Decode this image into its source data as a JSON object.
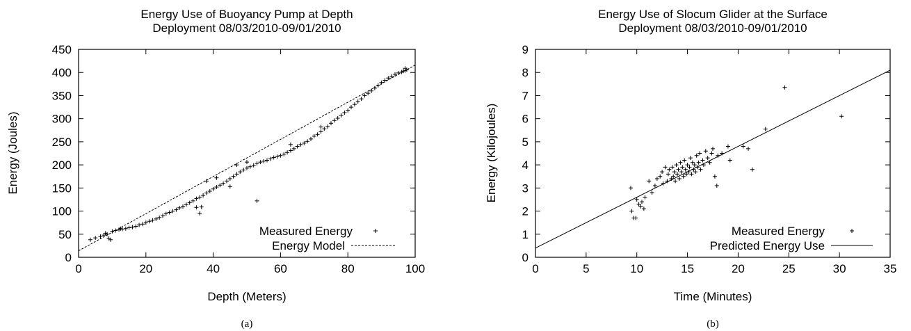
{
  "chart_data": [
    {
      "type": "scatter",
      "caption": "(a)",
      "title": "Energy Use of Buoyancy Pump at Depth",
      "subtitle": "Deployment 08/03/2010-09/01/2010",
      "xlabel": "Depth (Meters)",
      "ylabel": "Energy (Joules)",
      "xlim": [
        0,
        100
      ],
      "ylim": [
        0,
        450
      ],
      "xticks": [
        0,
        20,
        40,
        60,
        80,
        100
      ],
      "yticks": [
        0,
        50,
        100,
        150,
        200,
        250,
        300,
        350,
        400,
        450
      ],
      "grid": false,
      "legend_position": "bottom-right",
      "series": [
        {
          "name": "Measured Energy",
          "marker": "+",
          "points": [
            [
              3.5,
              38
            ],
            [
              5,
              42
            ],
            [
              6.5,
              45
            ],
            [
              7.5,
              48
            ],
            [
              8,
              52
            ],
            [
              8.5,
              50
            ],
            [
              9,
              41
            ],
            [
              9.5,
              38
            ],
            [
              10,
              56
            ],
            [
              11,
              58
            ],
            [
              12,
              60
            ],
            [
              12.5,
              62
            ],
            [
              13,
              61
            ],
            [
              14,
              62
            ],
            [
              15,
              64
            ],
            [
              16,
              65
            ],
            [
              17,
              67
            ],
            [
              18,
              70
            ],
            [
              19,
              72
            ],
            [
              20,
              75
            ],
            [
              21,
              78
            ],
            [
              22,
              80
            ],
            [
              23,
              83
            ],
            [
              24,
              86
            ],
            [
              25,
              90
            ],
            [
              26,
              94
            ],
            [
              27,
              97
            ],
            [
              28,
              100
            ],
            [
              29,
              103
            ],
            [
              30,
              107
            ],
            [
              31,
              110
            ],
            [
              32,
              114
            ],
            [
              33,
              118
            ],
            [
              34,
              122
            ],
            [
              35,
              127
            ],
            [
              36,
              130
            ],
            [
              37,
              134
            ],
            [
              38,
              139
            ],
            [
              39,
              143
            ],
            [
              40,
              148
            ],
            [
              41,
              152
            ],
            [
              42,
              156
            ],
            [
              43,
              160
            ],
            [
              44,
              165
            ],
            [
              45,
              170
            ],
            [
              46,
              175
            ],
            [
              47,
              180
            ],
            [
              48,
              185
            ],
            [
              49,
              189
            ],
            [
              50,
              193
            ],
            [
              51,
              196
            ],
            [
              52,
              199
            ],
            [
              53,
              203
            ],
            [
              54,
              206
            ],
            [
              55,
              208
            ],
            [
              56,
              210
            ],
            [
              57,
              213
            ],
            [
              58,
              216
            ],
            [
              59,
              218
            ],
            [
              60,
              220
            ],
            [
              61,
              223
            ],
            [
              62,
              227
            ],
            [
              63,
              231
            ],
            [
              64,
              235
            ],
            [
              65,
              240
            ],
            [
              66,
              244
            ],
            [
              67,
              247
            ],
            [
              68,
              251
            ],
            [
              69,
              256
            ],
            [
              70,
              262
            ],
            [
              71,
              266
            ],
            [
              72,
              272
            ],
            [
              73,
              278
            ],
            [
              74,
              283
            ],
            [
              75,
              290
            ],
            [
              76,
              296
            ],
            [
              77,
              301
            ],
            [
              78,
              307
            ],
            [
              79,
              313
            ],
            [
              80,
              318
            ],
            [
              81,
              325
            ],
            [
              82,
              331
            ],
            [
              83,
              337
            ],
            [
              84,
              343
            ],
            [
              85,
              350
            ],
            [
              86,
              355
            ],
            [
              87,
              360
            ],
            [
              88,
              366
            ],
            [
              89,
              372
            ],
            [
              90,
              378
            ],
            [
              91,
              383
            ],
            [
              92,
              388
            ],
            [
              93,
              392
            ],
            [
              94,
              396
            ],
            [
              95,
              399
            ],
            [
              96,
              401
            ],
            [
              96.5,
              403
            ],
            [
              97,
              404
            ],
            [
              97.5,
              406
            ],
            [
              97,
              409
            ],
            [
              53,
              122
            ],
            [
              36,
              95
            ],
            [
              35,
              108
            ],
            [
              36.5,
              109
            ],
            [
              38,
              165
            ],
            [
              41,
              172
            ],
            [
              47,
              200
            ],
            [
              50,
              206
            ],
            [
              63,
              244
            ],
            [
              72,
              282
            ],
            [
              45,
              153
            ]
          ]
        },
        {
          "name": "Energy Model",
          "line": "dashed",
          "x": [
            0,
            100
          ],
          "y": [
            14,
            416
          ]
        }
      ]
    },
    {
      "type": "scatter",
      "caption": "(b)",
      "title": "Energy Use of Slocum Glider at the Surface",
      "subtitle": "Deployment 08/03/2010-09/01/2010",
      "xlabel": "Time (Minutes)",
      "ylabel": "Energy (Kilojoules)",
      "xlim": [
        0,
        35
      ],
      "ylim": [
        0,
        9
      ],
      "xticks": [
        0,
        5,
        10,
        15,
        20,
        25,
        30,
        35
      ],
      "yticks": [
        0,
        1,
        2,
        3,
        4,
        5,
        6,
        7,
        8,
        9
      ],
      "grid": false,
      "legend_position": "bottom-right",
      "series": [
        {
          "name": "Measured Energy",
          "marker": "+",
          "points": [
            [
              9.4,
              3.0
            ],
            [
              9.5,
              2.0
            ],
            [
              9.7,
              1.7
            ],
            [
              9.9,
              1.7
            ],
            [
              10.0,
              2.5
            ],
            [
              10.2,
              2.3
            ],
            [
              10.4,
              2.2
            ],
            [
              10.5,
              2.4
            ],
            [
              10.7,
              2.1
            ],
            [
              10.8,
              2.6
            ],
            [
              11.2,
              3.3
            ],
            [
              11.5,
              2.8
            ],
            [
              11.8,
              3.1
            ],
            [
              12.0,
              3.4
            ],
            [
              12.3,
              3.5
            ],
            [
              12.5,
              3.7
            ],
            [
              12.6,
              3.2
            ],
            [
              12.8,
              3.9
            ],
            [
              13.0,
              3.3
            ],
            [
              13.1,
              3.6
            ],
            [
              13.2,
              3.8
            ],
            [
              13.4,
              3.4
            ],
            [
              13.5,
              3.9
            ],
            [
              13.6,
              3.5
            ],
            [
              13.7,
              3.7
            ],
            [
              13.8,
              3.3
            ],
            [
              13.9,
              4.0
            ],
            [
              14.0,
              3.6
            ],
            [
              14.1,
              3.8
            ],
            [
              14.2,
              3.4
            ],
            [
              14.3,
              4.1
            ],
            [
              14.4,
              3.7
            ],
            [
              14.5,
              3.9
            ],
            [
              14.6,
              3.5
            ],
            [
              14.7,
              4.2
            ],
            [
              14.8,
              3.8
            ],
            [
              14.9,
              3.6
            ],
            [
              15.0,
              4.0
            ],
            [
              15.1,
              3.7
            ],
            [
              15.2,
              3.9
            ],
            [
              15.3,
              4.3
            ],
            [
              15.4,
              3.6
            ],
            [
              15.5,
              4.1
            ],
            [
              15.6,
              3.8
            ],
            [
              15.7,
              4.0
            ],
            [
              15.8,
              3.7
            ],
            [
              15.9,
              4.4
            ],
            [
              16.0,
              3.9
            ],
            [
              16.1,
              4.1
            ],
            [
              16.2,
              4.5
            ],
            [
              16.3,
              3.8
            ],
            [
              16.5,
              4.2
            ],
            [
              16.6,
              4.0
            ],
            [
              16.8,
              4.6
            ],
            [
              17.0,
              4.3
            ],
            [
              17.2,
              4.1
            ],
            [
              17.4,
              4.5
            ],
            [
              17.5,
              4.7
            ],
            [
              17.7,
              3.5
            ],
            [
              17.9,
              3.1
            ],
            [
              18.0,
              4.4
            ],
            [
              18.4,
              4.5
            ],
            [
              19.0,
              4.8
            ],
            [
              19.2,
              4.2
            ],
            [
              20.5,
              4.8
            ],
            [
              21.0,
              4.7
            ],
            [
              21.4,
              3.8
            ],
            [
              22.7,
              5.55
            ],
            [
              24.6,
              7.35
            ],
            [
              30.2,
              6.1
            ]
          ]
        },
        {
          "name": "Predicted Energy Use",
          "line": "solid",
          "x": [
            0,
            35
          ],
          "y": [
            0.4,
            8.1
          ]
        }
      ]
    }
  ]
}
